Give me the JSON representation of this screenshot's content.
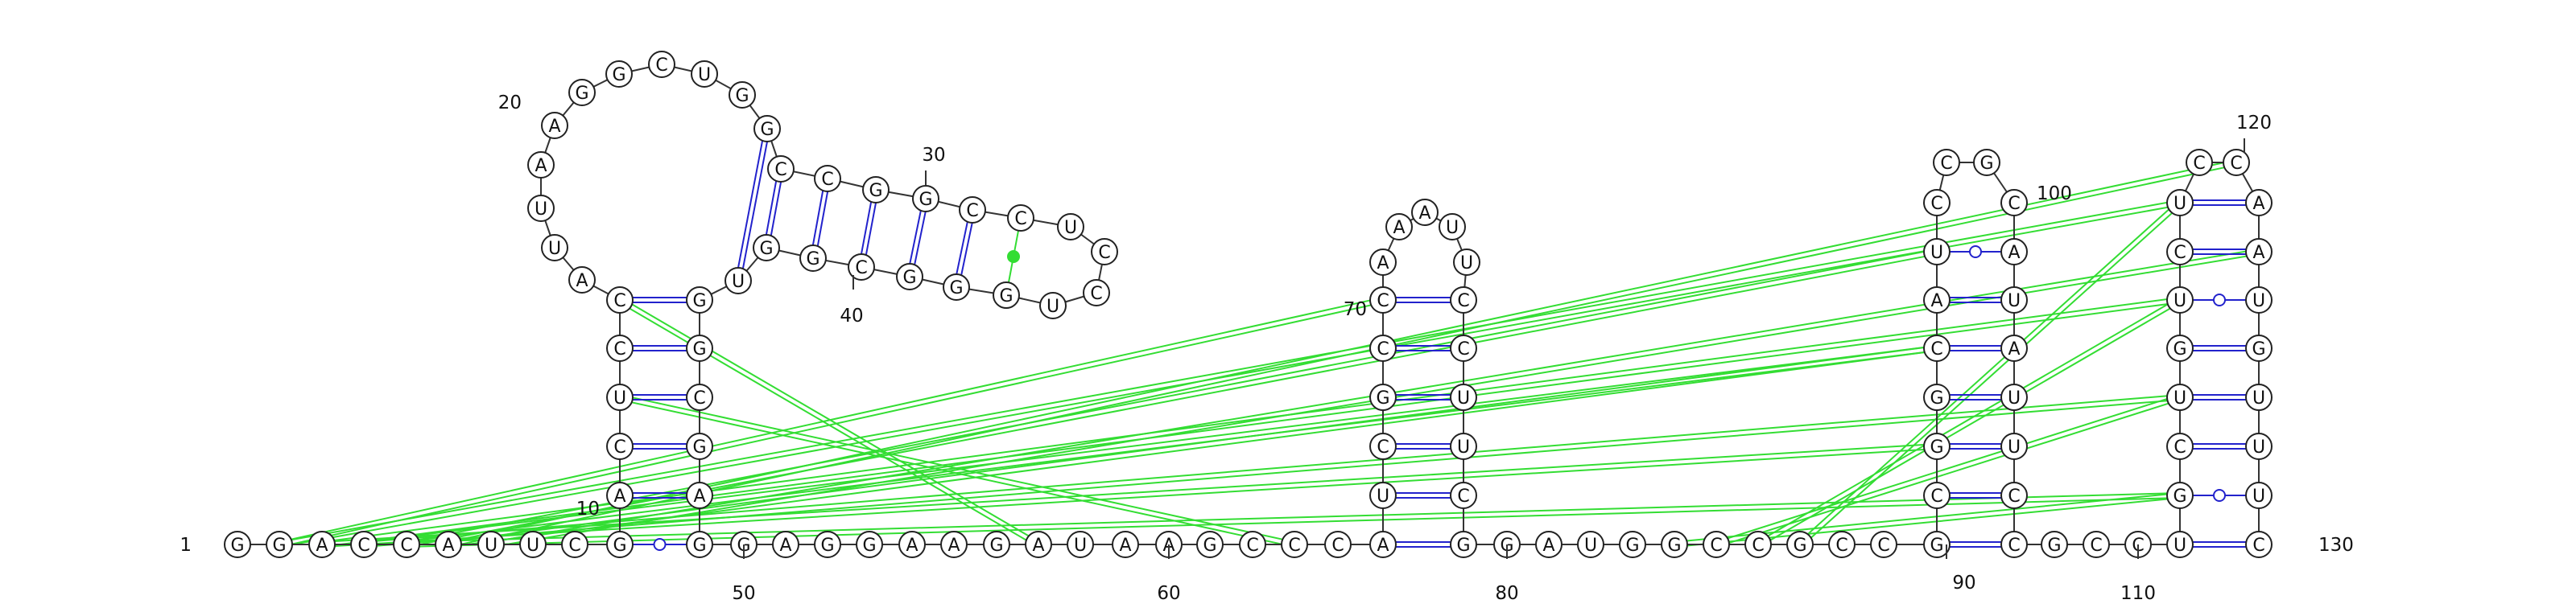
{
  "diagram": {
    "type": "rna-secondary-structure",
    "sequence": [
      "G",
      "G",
      "A",
      "C",
      "C",
      "A",
      "U",
      "U",
      "C",
      "G",
      "A",
      "C",
      "U",
      "C",
      "C",
      "A",
      "U",
      "U",
      "A",
      "A",
      "G",
      "G",
      "C",
      "U",
      "G",
      "G",
      "C",
      "C",
      "G",
      "G",
      "C",
      "C",
      "U",
      "C",
      "C",
      "U",
      "G",
      "G",
      "G",
      "C",
      "G",
      "G",
      "U",
      "G",
      "G",
      "C",
      "G",
      "A",
      "G",
      "G",
      "A",
      "G",
      "G",
      "A",
      "A",
      "G",
      "A",
      "U",
      "A",
      "A",
      "G",
      "C",
      "C",
      "C",
      "A",
      "U",
      "C",
      "G",
      "C",
      "C",
      "A",
      "A",
      "A",
      "U",
      "U",
      "C",
      "C",
      "U",
      "U",
      "C",
      "G",
      "G",
      "A",
      "U",
      "G",
      "G",
      "C",
      "C",
      "G",
      "C",
      "C",
      "G",
      "C",
      "G",
      "G",
      "C",
      "A",
      "U",
      "C",
      "C",
      "G",
      "C",
      "A",
      "U",
      "A",
      "U",
      "U",
      "C",
      "C",
      "G",
      "C",
      "C",
      "U",
      "G",
      "C",
      "U",
      "G",
      "U",
      "C",
      "U",
      "C",
      "C",
      "A",
      "A",
      "U",
      "G",
      "U",
      "U",
      "U",
      "C"
    ],
    "position_labels": [
      "1",
      "10",
      "20",
      "30",
      "40",
      "50",
      "60",
      "70",
      "80",
      "90",
      "100",
      "110",
      "120",
      "130"
    ],
    "colors": {
      "backbone": "#333333",
      "canonical_pair": "#2222cc",
      "gu_pair": "#2222cc",
      "pseudoknot": "#33dd33",
      "noncanonical": "#33dd33"
    }
  }
}
